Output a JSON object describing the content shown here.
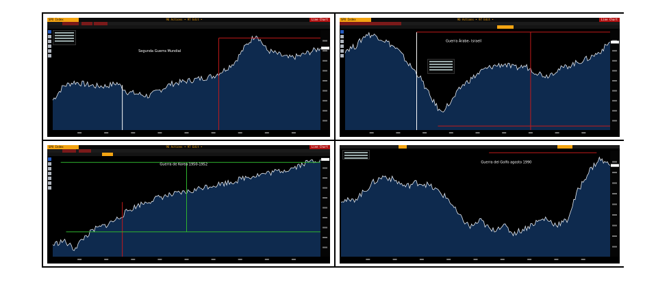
{
  "panels": [
    {
      "ticker": "SPX Index",
      "actions": "96 Actions • 97 Edit •",
      "mode": "Line Chart",
      "annotation": "Segunda Guerra Mundial"
    },
    {
      "ticker": "SPX Index",
      "actions": "96 Actions • 97 Edit •",
      "mode": "Line Chart",
      "annotation": "Guerra Árabe- Israelí"
    },
    {
      "ticker": "SPX Index",
      "actions": "96 Actions • 97 Edit •",
      "mode": "Line Chart",
      "annotation": "Guerra de Korea 1950-1952"
    },
    {
      "ticker": "",
      "actions": "",
      "mode": "",
      "annotation": "Guerra del Golfo agosto 1990"
    }
  ],
  "colors": {
    "background": "#000000",
    "plot_fill": "#0e2a4e",
    "line": "#e6ecf4",
    "red_marker": "#c41a1a",
    "green_marker": "#2fb52f",
    "white_marker": "#ffffff",
    "bloomberg_orange": "#f3a412"
  },
  "chart_data": [
    {
      "type": "area",
      "annotation": "Segunda Guerra Mundial",
      "x": [
        0,
        4,
        8,
        12,
        16,
        20,
        24,
        28,
        32,
        36,
        40,
        44,
        48,
        52,
        56,
        60,
        64,
        68,
        72,
        76,
        80,
        84,
        88,
        92,
        96,
        100
      ],
      "values": [
        30,
        44,
        48,
        46,
        44,
        44,
        47,
        38,
        36,
        34,
        40,
        46,
        48,
        50,
        52,
        54,
        60,
        68,
        84,
        96,
        80,
        76,
        72,
        74,
        78,
        82
      ]
    },
    {
      "type": "area",
      "annotation": "Guerra Árabe- Israelí",
      "x": [
        0,
        4,
        8,
        12,
        16,
        20,
        24,
        28,
        32,
        36,
        40,
        44,
        48,
        52,
        56,
        60,
        64,
        68,
        72,
        76,
        80,
        84,
        88,
        92,
        96,
        100
      ],
      "values": [
        80,
        84,
        96,
        94,
        88,
        80,
        66,
        54,
        34,
        18,
        28,
        44,
        52,
        60,
        64,
        66,
        62,
        64,
        58,
        54,
        60,
        64,
        68,
        72,
        78,
        88
      ]
    },
    {
      "type": "area",
      "annotation": "Guerra de Korea 1950-1952",
      "x": [
        0,
        4,
        8,
        12,
        16,
        20,
        24,
        28,
        32,
        36,
        40,
        44,
        48,
        52,
        56,
        60,
        64,
        68,
        72,
        76,
        80,
        84,
        88,
        92,
        96,
        100
      ],
      "values": [
        12,
        16,
        8,
        20,
        28,
        32,
        38,
        46,
        52,
        56,
        60,
        62,
        64,
        66,
        70,
        72,
        74,
        76,
        80,
        82,
        84,
        86,
        88,
        92,
        96,
        98
      ]
    },
    {
      "type": "area",
      "annotation": "Guerra del Golfo agosto 1990",
      "x": [
        0,
        4,
        8,
        12,
        16,
        20,
        24,
        28,
        32,
        36,
        40,
        44,
        48,
        52,
        56,
        60,
        64,
        68,
        72,
        76,
        80,
        84,
        88,
        92,
        96,
        100
      ],
      "values": [
        54,
        52,
        60,
        70,
        76,
        72,
        66,
        70,
        68,
        62,
        54,
        38,
        28,
        34,
        24,
        30,
        22,
        26,
        32,
        36,
        30,
        34,
        62,
        80,
        92,
        86
      ]
    }
  ]
}
